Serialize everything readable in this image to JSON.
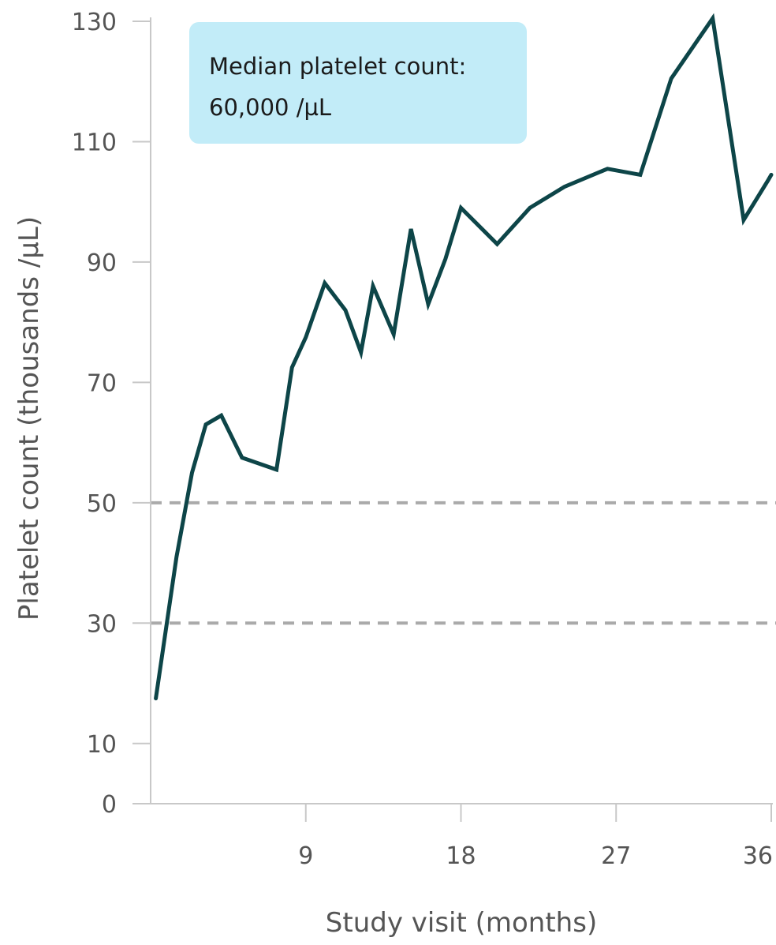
{
  "chart_data": {
    "type": "line",
    "xlabel": "Study visit (months)",
    "ylabel": "Platelet count (thousands /µL)",
    "xlim": [
      0,
      36
    ],
    "ylim": [
      0,
      130
    ],
    "xticks": [
      "9",
      "18",
      "27",
      "36"
    ],
    "yticks": [
      "0",
      "10",
      "30",
      "50",
      "70",
      "90",
      "110",
      "130"
    ],
    "grid": false,
    "reference_lines": [
      50,
      30
    ],
    "annotation": {
      "line1": "Median platelet count:",
      "line2": "60,000 /µL"
    },
    "series": [
      {
        "color": "#0d4548",
        "x": [
          0.3,
          1.5,
          2.4,
          3.2,
          4.1,
          5.3,
          7.3,
          8.2,
          9.0,
          10.1,
          11.3,
          12.2,
          12.9,
          14.1,
          15.1,
          16.1,
          17.1,
          18.0,
          20.1,
          22.0,
          24.0,
          26.5,
          28.4,
          30.2,
          32.6,
          34.4,
          35.8,
          36.0
        ],
        "y": [
          17.5,
          41,
          55,
          63,
          64.5,
          57.5,
          55.5,
          72.5,
          77.5,
          86.5,
          82,
          75,
          86,
          78,
          95.5,
          83,
          90.5,
          99,
          93,
          99,
          102.5,
          105.5,
          104.5,
          120.5,
          130.5,
          97,
          103.5,
          104.5
        ]
      }
    ]
  },
  "colors": {
    "line": "#0d4548",
    "reference_line": "#aaaaaa",
    "axis": "#c8c8c8",
    "text": "#555555",
    "callout_bg": "#c2ecf8"
  }
}
